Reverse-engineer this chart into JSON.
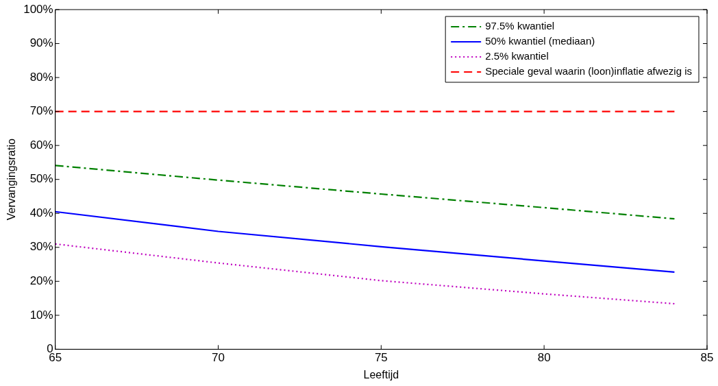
{
  "chart_data": {
    "type": "line",
    "xlabel": "Leeftijd",
    "ylabel": "Vervangingsratio",
    "x": [
      65,
      70,
      75,
      80,
      84
    ],
    "series": [
      {
        "name": "97.5% kwantiel",
        "color": "#008000",
        "line_style": "dashdot",
        "values": [
          54.1,
          49.8,
          45.7,
          41.7,
          38.4
        ]
      },
      {
        "name": "50% kwantiel (mediaan)",
        "color": "#0000ff",
        "line_style": "solid",
        "values": [
          40.5,
          34.7,
          30.2,
          26.0,
          22.7
        ]
      },
      {
        "name": "2.5% kwantiel",
        "color": "#bf00bf",
        "line_style": "dotted",
        "values": [
          31.0,
          25.4,
          20.2,
          16.3,
          13.4
        ]
      },
      {
        "name": "Speciale geval waarin (loon)inflatie afwezig is",
        "color": "#ff0000",
        "line_style": "dashed",
        "x": [
          65,
          84
        ],
        "values": [
          70,
          70
        ]
      }
    ],
    "xlim": [
      65,
      85
    ],
    "xticks": [
      65,
      70,
      75,
      80,
      85
    ],
    "ylim": [
      0,
      100
    ],
    "yticks": [
      0,
      {
        "value": 10,
        "label": "10%"
      },
      {
        "value": 20,
        "label": "20%"
      },
      {
        "value": 30,
        "label": "30%"
      },
      {
        "value": 40,
        "label": "40%"
      },
      {
        "value": 50,
        "label": "50%"
      },
      {
        "value": 60,
        "label": "60%"
      },
      {
        "value": 70,
        "label": "70%"
      },
      {
        "value": 80,
        "label": "80%"
      },
      {
        "value": 90,
        "label": "90%"
      },
      {
        "value": 100,
        "label": "100%"
      }
    ],
    "grid": false,
    "legend": "top right",
    "marker": "none"
  }
}
